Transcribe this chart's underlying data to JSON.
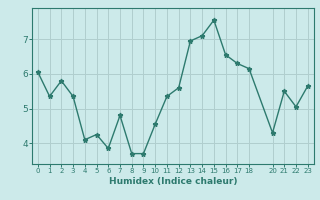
{
  "x": [
    0,
    1,
    2,
    3,
    4,
    5,
    6,
    7,
    8,
    9,
    10,
    11,
    12,
    13,
    14,
    15,
    16,
    17,
    18,
    20,
    21,
    22,
    23
  ],
  "y": [
    6.05,
    5.35,
    5.8,
    5.35,
    4.1,
    4.25,
    3.85,
    4.8,
    3.7,
    3.7,
    4.55,
    5.35,
    5.6,
    6.95,
    7.1,
    7.55,
    6.55,
    6.3,
    6.15,
    4.3,
    5.5,
    5.05,
    5.65
  ],
  "xticks": [
    0,
    1,
    2,
    3,
    4,
    5,
    6,
    7,
    8,
    9,
    10,
    11,
    12,
    13,
    14,
    15,
    16,
    17,
    18,
    20,
    21,
    22,
    23
  ],
  "yticks": [
    4,
    5,
    6,
    7
  ],
  "ylim": [
    3.4,
    7.9
  ],
  "xlim": [
    -0.5,
    23.5
  ],
  "xlabel": "Humidex (Indice chaleur)",
  "line_color": "#2d7a6e",
  "marker": "*",
  "bg_color": "#cceaea",
  "grid_color": "#b0cece",
  "tick_color": "#2d7a6e",
  "label_color": "#2d7a6e",
  "axis_color": "#2d7a6e"
}
